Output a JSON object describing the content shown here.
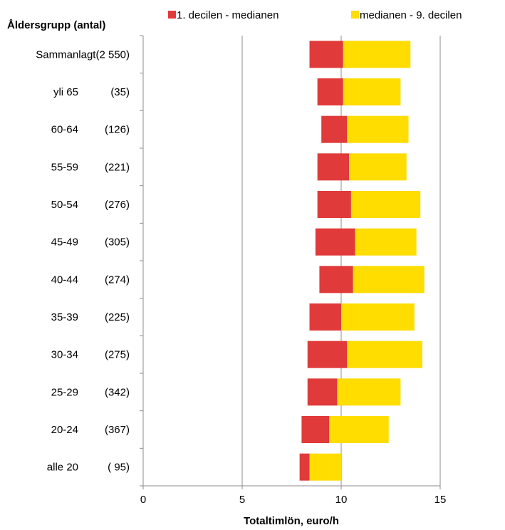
{
  "chart_data": {
    "type": "bar",
    "subtype": "stacked-horizontal-range",
    "y_axis_title": "Åldersgrupp (antal)",
    "xlabel": "Totaltimlön, euro/h",
    "xlim": [
      0,
      15
    ],
    "xticks": [
      0,
      5,
      10,
      15
    ],
    "grid": "vertical",
    "legend_position": "top",
    "legend": [
      {
        "label": "1. decilen - medianen",
        "color": "#e03a3a"
      },
      {
        "label": "medianen - 9. decilen",
        "color": "#ffdd00"
      }
    ],
    "categories": [
      {
        "group": "Sammanlagt",
        "count": "(2 550)"
      },
      {
        "group": "yli 65",
        "count": "(35)"
      },
      {
        "group": "60-64",
        "count": "(126)"
      },
      {
        "group": "55-59",
        "count": "(221)"
      },
      {
        "group": "50-54",
        "count": "(276)"
      },
      {
        "group": "45-49",
        "count": "(305)"
      },
      {
        "group": "40-44",
        "count": "(274)"
      },
      {
        "group": "35-39",
        "count": "(225)"
      },
      {
        "group": "30-34",
        "count": "(275)"
      },
      {
        "group": "25-29",
        "count": "(342)"
      },
      {
        "group": "20-24",
        "count": "(367)"
      },
      {
        "group": "alle 20",
        "count": "( 95)"
      }
    ],
    "decile1": [
      8.4,
      8.8,
      9.0,
      8.8,
      8.8,
      8.7,
      8.9,
      8.4,
      8.3,
      8.3,
      8.0,
      7.9
    ],
    "median": [
      10.1,
      10.1,
      10.3,
      10.4,
      10.5,
      10.7,
      10.6,
      10.0,
      10.3,
      9.8,
      9.4,
      8.4
    ],
    "decile9": [
      13.5,
      13.0,
      13.4,
      13.3,
      14.0,
      13.8,
      14.2,
      13.7,
      14.1,
      13.0,
      12.4,
      10.0
    ]
  }
}
